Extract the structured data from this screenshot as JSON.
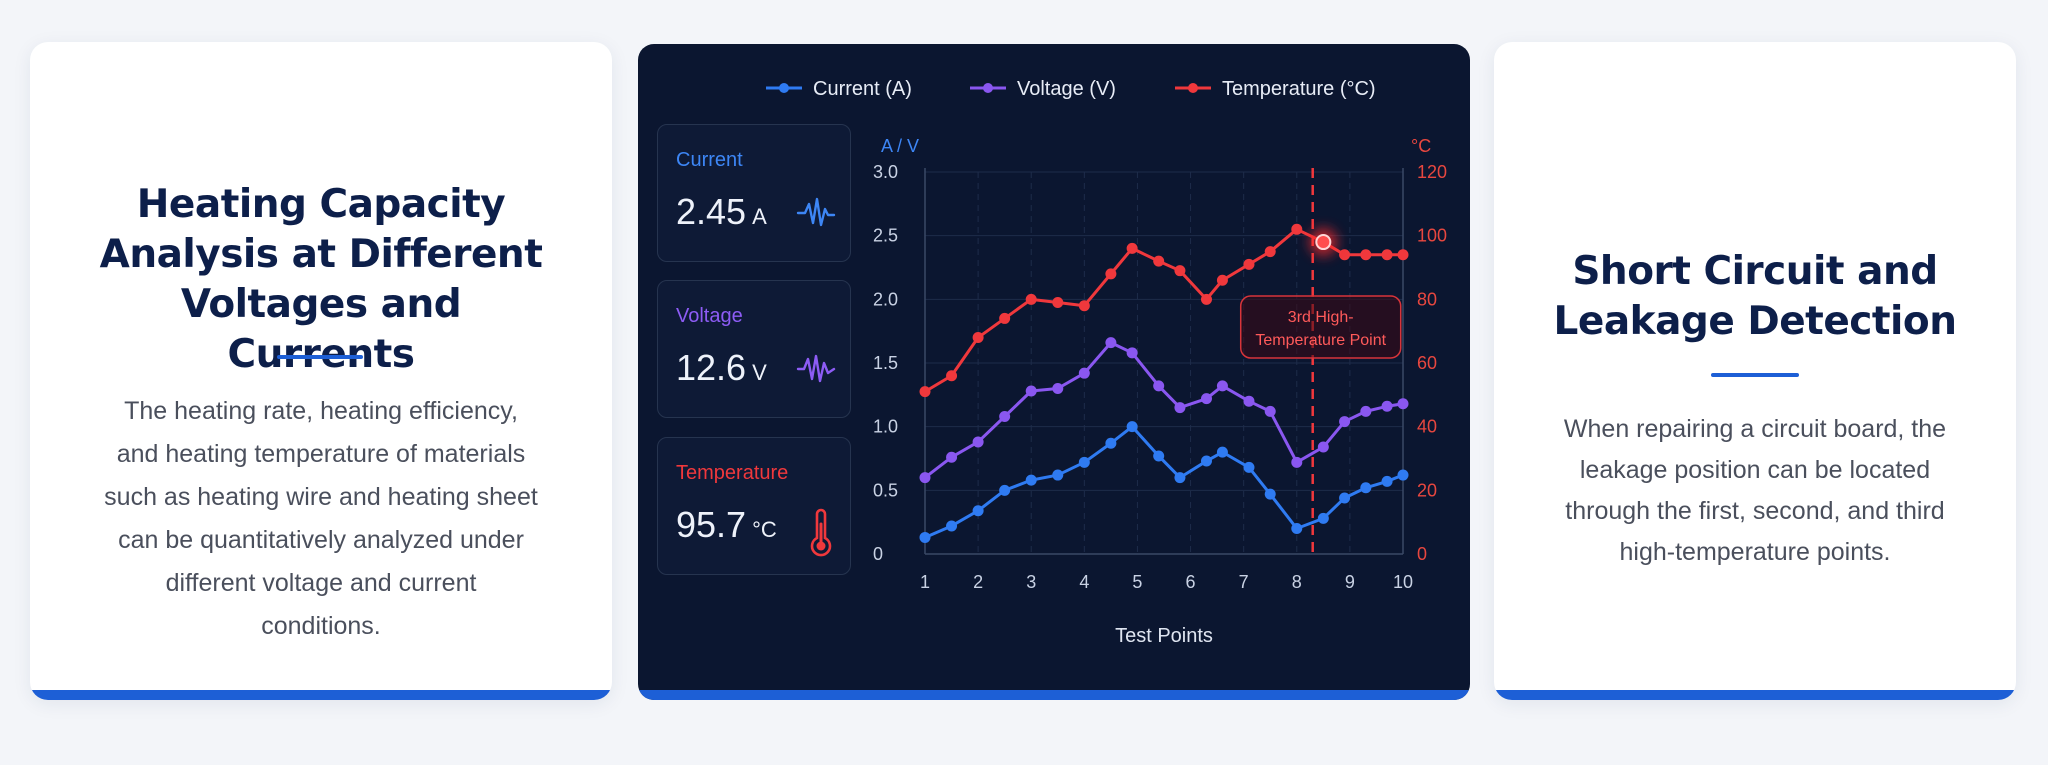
{
  "left_card": {
    "title_lines": [
      "Heating Capacity",
      "Analysis at Different",
      "Voltages and Currents"
    ],
    "description_lines": [
      "The heating rate, heating efficiency,",
      "and heating temperature of materials",
      "such as heating wire and heating sheet",
      "can be quantitatively analyzed under",
      "different voltage and current",
      "conditions."
    ]
  },
  "right_card": {
    "title_lines": [
      "Short Circuit and",
      "Leakage Detection"
    ],
    "description_lines": [
      "When repairing a circuit board, the",
      "leakage position can be located",
      "through the first, second, and third",
      "high-temperature points."
    ]
  },
  "stats": {
    "current": {
      "label": "Current",
      "value": "2.45",
      "unit": "A",
      "icon": "waveform-icon"
    },
    "voltage": {
      "label": "Voltage",
      "value": "12.6",
      "unit": "V",
      "icon": "waveform-icon"
    },
    "temperature": {
      "label": "Temperature",
      "value": "95.7",
      "unit": "°C",
      "icon": "thermometer-icon"
    }
  },
  "colors": {
    "current": "#2f7bf2",
    "voltage": "#8a57f0",
    "temperature": "#f0383c",
    "panel_bg": "#0b1630",
    "accent": "#1d5fd6"
  },
  "chart_data": {
    "type": "line",
    "xlabel": "Test Points",
    "ylabel_left": "A / V",
    "ylabel_right": "°C",
    "x_ticks": [
      1,
      2,
      3,
      4,
      5,
      6,
      7,
      8,
      9,
      10
    ],
    "y_left_ticks": [
      "0",
      "0.5",
      "1.0",
      "1.5",
      "2.0",
      "2.5",
      "3.0"
    ],
    "y_right_ticks": [
      "0",
      "20",
      "40",
      "60",
      "80",
      "100",
      "120"
    ],
    "ylim_left": [
      0,
      3.0
    ],
    "ylim_right": [
      0,
      120
    ],
    "grid": true,
    "legend_position": "top",
    "series": [
      {
        "name": "Current (A)",
        "axis": "left",
        "color": "#2f7bf2",
        "x": [
          1,
          1.5,
          2,
          2.5,
          3,
          3.5,
          4,
          4.5,
          4.9,
          5.4,
          5.8,
          6.3,
          6.6,
          7.1,
          7.5,
          8.0,
          8.5,
          8.9,
          9.3,
          9.7,
          10.0
        ],
        "y": [
          0.13,
          0.22,
          0.34,
          0.5,
          0.58,
          0.62,
          0.72,
          0.87,
          1.0,
          0.77,
          0.6,
          0.73,
          0.8,
          0.68,
          0.47,
          0.2,
          0.28,
          0.44,
          0.52,
          0.57,
          0.62
        ]
      },
      {
        "name": "Voltage (V)",
        "axis": "left",
        "color": "#8a57f0",
        "x": [
          1,
          1.5,
          2,
          2.5,
          3,
          3.5,
          4,
          4.5,
          4.9,
          5.4,
          5.8,
          6.3,
          6.6,
          7.1,
          7.5,
          8.0,
          8.5,
          8.9,
          9.3,
          9.7,
          10.0
        ],
        "y": [
          0.6,
          0.76,
          0.88,
          1.08,
          1.28,
          1.3,
          1.42,
          1.66,
          1.58,
          1.32,
          1.15,
          1.22,
          1.32,
          1.2,
          1.12,
          0.72,
          0.84,
          1.04,
          1.12,
          1.16,
          1.18
        ],
        "annotation": {
          "x": 8.3,
          "label_lines": [
            "3rd High-",
            "Temperature Point"
          ]
        }
      },
      {
        "name": "Temperature (°C)",
        "axis": "right",
        "color": "#f0383c",
        "x": [
          1,
          1.5,
          2,
          2.5,
          3,
          3.5,
          4,
          4.5,
          4.9,
          5.4,
          5.8,
          6.3,
          6.6,
          7.1,
          7.5,
          8.0,
          8.5,
          8.9,
          9.3,
          9.7,
          10.0
        ],
        "y": [
          51,
          56,
          68,
          74,
          80,
          79,
          78,
          88,
          96,
          92,
          89,
          80,
          86,
          91,
          95,
          102,
          98,
          94,
          94,
          94,
          94
        ]
      }
    ]
  }
}
